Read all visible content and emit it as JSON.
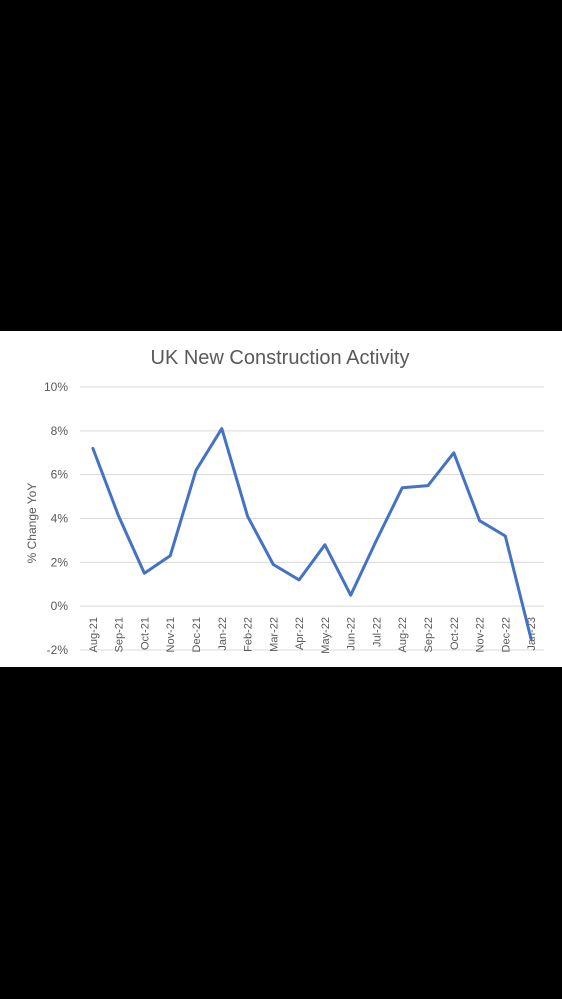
{
  "chart_data": {
    "type": "line",
    "title": "UK New Construction Activity",
    "xlabel": "",
    "ylabel": "% Change YoY",
    "categories": [
      "Aug-21",
      "Sep-21",
      "Oct-21",
      "Nov-21",
      "Dec-21",
      "Jan-22",
      "Feb-22",
      "Mar-22",
      "Apr-22",
      "May-22",
      "Jun-22",
      "Jul-22",
      "Aug-22",
      "Sep-22",
      "Oct-22",
      "Nov-22",
      "Dec-22",
      "Jan-23"
    ],
    "series": [
      {
        "values": [
          7.2,
          4.1,
          1.5,
          2.3,
          6.2,
          8.1,
          4.1,
          1.9,
          1.2,
          2.8,
          0.5,
          3.0,
          5.4,
          5.5,
          7.0,
          3.9,
          3.2,
          -1.5
        ],
        "color": "#4472C4"
      }
    ],
    "ylim": [
      -2,
      10
    ],
    "yticks": [
      "-2%",
      "0%",
      "2%",
      "4%",
      "6%",
      "8%",
      "10%"
    ],
    "ytick_values": [
      -2,
      0,
      2,
      4,
      6,
      8,
      10
    ],
    "grid": true,
    "legend": "none"
  }
}
